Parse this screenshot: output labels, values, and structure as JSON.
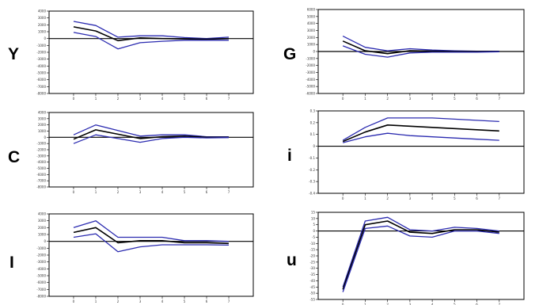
{
  "colors": {
    "center": "#000000",
    "bands": "#2b2bb0",
    "frame": "#000000",
    "zero": "#000000"
  },
  "chart_data": [
    {
      "type": "line",
      "label": "Y",
      "x": [
        0,
        1,
        2,
        3,
        4,
        5,
        6,
        7
      ],
      "ylim": [
        -8000,
        4000
      ],
      "yticks": [
        "4000",
        "3000",
        "2000",
        "1000",
        "0",
        "-1000",
        "-2000",
        "-3000",
        "-4000",
        "-5000",
        "-6000",
        "-7000",
        "-8000"
      ],
      "xticks": [
        "0",
        "1",
        "2",
        "3",
        "4",
        "5",
        "6",
        "7"
      ],
      "series": [
        {
          "role": "upper",
          "values": [
            2500,
            1900,
            200,
            400,
            400,
            150,
            0,
            200
          ]
        },
        {
          "role": "center",
          "values": [
            1700,
            1100,
            -300,
            100,
            0,
            -50,
            -100,
            0
          ]
        },
        {
          "role": "lower",
          "values": [
            900,
            300,
            -1500,
            -600,
            -400,
            -250,
            -250,
            -250
          ]
        }
      ]
    },
    {
      "type": "line",
      "label": "G",
      "x": [
        0,
        1,
        2,
        3,
        4,
        5,
        6,
        7
      ],
      "ylim": [
        -6000,
        6000
      ],
      "yticks": [
        "6000",
        "5000",
        "4000",
        "3000",
        "2000",
        "1000",
        "0",
        "-1000",
        "-2000",
        "-3000",
        "-4000",
        "-5000",
        "-6000"
      ],
      "xticks": [
        "0",
        "1",
        "2",
        "3",
        "4",
        "5",
        "6",
        "7"
      ],
      "series": [
        {
          "role": "upper",
          "values": [
            2200,
            600,
            100,
            400,
            200,
            100,
            50,
            50
          ]
        },
        {
          "role": "center",
          "values": [
            1500,
            100,
            -300,
            100,
            50,
            0,
            0,
            0
          ]
        },
        {
          "role": "lower",
          "values": [
            800,
            -400,
            -800,
            -200,
            -100,
            -100,
            -100,
            -50
          ]
        }
      ]
    },
    {
      "type": "line",
      "label": "C",
      "x": [
        0,
        1,
        2,
        3,
        4,
        5,
        6,
        7
      ],
      "ylim": [
        -8000,
        4000
      ],
      "yticks": [
        "4000",
        "3000",
        "2000",
        "1000",
        "0",
        "-1000",
        "-2000",
        "-3000",
        "-4000",
        "-5000",
        "-6000",
        "-7000",
        "-8000"
      ],
      "xticks": [
        "0",
        "1",
        "2",
        "3",
        "4",
        "5",
        "6",
        "7"
      ],
      "series": [
        {
          "role": "upper",
          "values": [
            400,
            2000,
            1100,
            200,
            400,
            400,
            100,
            100
          ]
        },
        {
          "role": "center",
          "values": [
            -300,
            1200,
            500,
            -200,
            100,
            200,
            0,
            0
          ]
        },
        {
          "role": "lower",
          "values": [
            -1000,
            400,
            -200,
            -800,
            -200,
            0,
            -100,
            -50
          ]
        }
      ]
    },
    {
      "type": "line",
      "label": "i",
      "x": [
        0,
        1,
        2,
        3,
        4,
        5,
        6,
        7
      ],
      "ylim": [
        -0.4,
        0.3
      ],
      "yticks": [
        "0.3",
        "0.2",
        "0.1",
        "0",
        "-0.1",
        "-0.2",
        "-0.3",
        "-0.4"
      ],
      "xticks": [
        "0",
        "1",
        "2",
        "3",
        "4",
        "5",
        "6",
        "7"
      ],
      "series": [
        {
          "role": "upper",
          "values": [
            0.05,
            0.16,
            0.24,
            0.24,
            0.24,
            0.23,
            0.22,
            0.21
          ]
        },
        {
          "role": "center",
          "values": [
            0.04,
            0.12,
            0.18,
            0.17,
            0.16,
            0.15,
            0.14,
            0.13
          ]
        },
        {
          "role": "lower",
          "values": [
            0.03,
            0.08,
            0.11,
            0.09,
            0.08,
            0.07,
            0.06,
            0.05
          ]
        }
      ]
    },
    {
      "type": "line",
      "label": "I",
      "x": [
        0,
        1,
        2,
        3,
        4,
        5,
        6,
        7
      ],
      "ylim": [
        -8000,
        4000
      ],
      "yticks": [
        "4000",
        "3000",
        "2000",
        "1000",
        "0",
        "-1000",
        "-2000",
        "-3000",
        "-4000",
        "-5000",
        "-6000",
        "-7000",
        "-8000"
      ],
      "xticks": [
        "0",
        "1",
        "2",
        "3",
        "4",
        "5",
        "6",
        "7"
      ],
      "series": [
        {
          "role": "upper",
          "values": [
            2000,
            3000,
            600,
            600,
            600,
            100,
            100,
            0
          ]
        },
        {
          "role": "center",
          "values": [
            1300,
            2000,
            -200,
            100,
            100,
            -200,
            -200,
            -300
          ]
        },
        {
          "role": "lower",
          "values": [
            600,
            1100,
            -1500,
            -800,
            -500,
            -500,
            -500,
            -550
          ]
        }
      ]
    },
    {
      "type": "line",
      "label": "u",
      "x": [
        0,
        1,
        2,
        3,
        4,
        5,
        6,
        7
      ],
      "ylim": [
        -55,
        15
      ],
      "yticks": [
        "15",
        "10",
        "5",
        "0",
        "-5",
        "-10",
        "-15",
        "-20",
        "-25",
        "-30",
        "-35",
        "-40",
        "-45",
        "-50",
        "-55"
      ],
      "xticks": [
        "0",
        "1",
        "2",
        "3",
        "4",
        "5",
        "6",
        "7"
      ],
      "series": [
        {
          "role": "upper",
          "values": [
            -45,
            8,
            11,
            1,
            0,
            3,
            2,
            0
          ]
        },
        {
          "role": "center",
          "values": [
            -47,
            5,
            8,
            -1,
            -2,
            1,
            1,
            -1
          ]
        },
        {
          "role": "lower",
          "values": [
            -49,
            2,
            4,
            -4,
            -5,
            0,
            0,
            -2
          ]
        }
      ]
    }
  ]
}
